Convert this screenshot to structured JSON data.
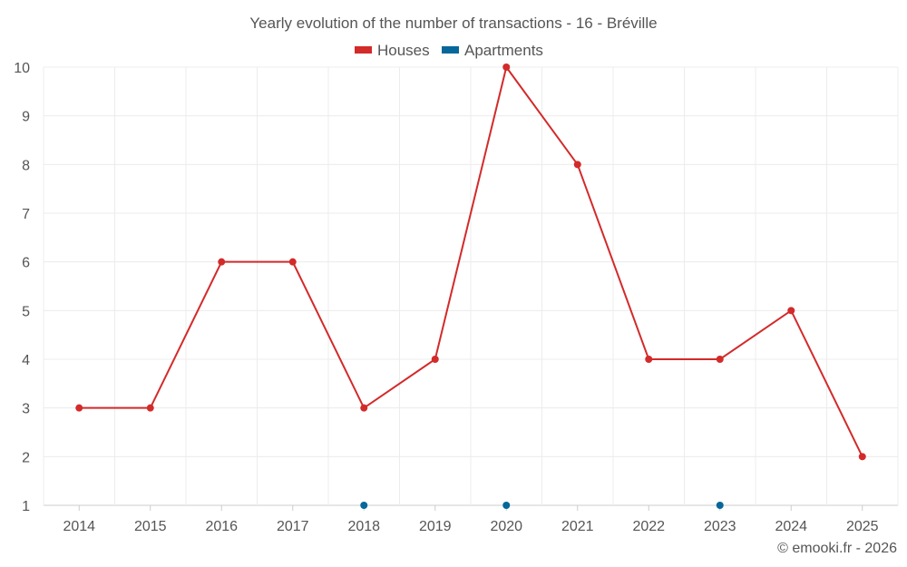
{
  "chart_data": {
    "type": "line",
    "title": "Yearly evolution of the number of transactions - 16 - Bréville",
    "categories": [
      "2014",
      "2015",
      "2016",
      "2017",
      "2018",
      "2019",
      "2020",
      "2021",
      "2022",
      "2023",
      "2024",
      "2025"
    ],
    "series": [
      {
        "name": "Houses",
        "color": "#d32a2a",
        "values": [
          3,
          3,
          6,
          6,
          3,
          4,
          10,
          8,
          4,
          4,
          5,
          2
        ]
      },
      {
        "name": "Apartments",
        "color": "#06679a",
        "values": [
          null,
          null,
          null,
          null,
          1,
          null,
          1,
          null,
          null,
          1,
          null,
          null
        ]
      }
    ],
    "ylim": [
      1,
      10
    ],
    "yticks": [
      "1",
      "2",
      "3",
      "4",
      "5",
      "6",
      "7",
      "8",
      "9",
      "10"
    ],
    "legend_position": "top-center",
    "grid": true
  },
  "credit": "© emooki.fr - 2026"
}
